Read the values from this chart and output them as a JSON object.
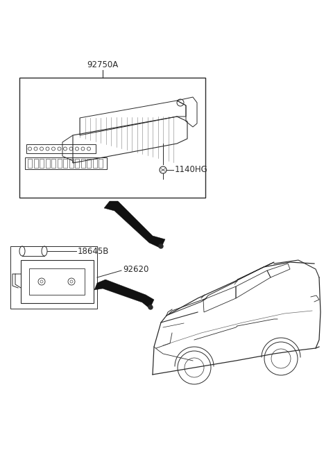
{
  "bg_color": "#ffffff",
  "line_color": "#2a2a2a",
  "label_92750A": "92750A",
  "label_1140HG": "1140HG",
  "label_18645B": "18645B",
  "label_92620": "92620",
  "font_size_labels": 8.5
}
